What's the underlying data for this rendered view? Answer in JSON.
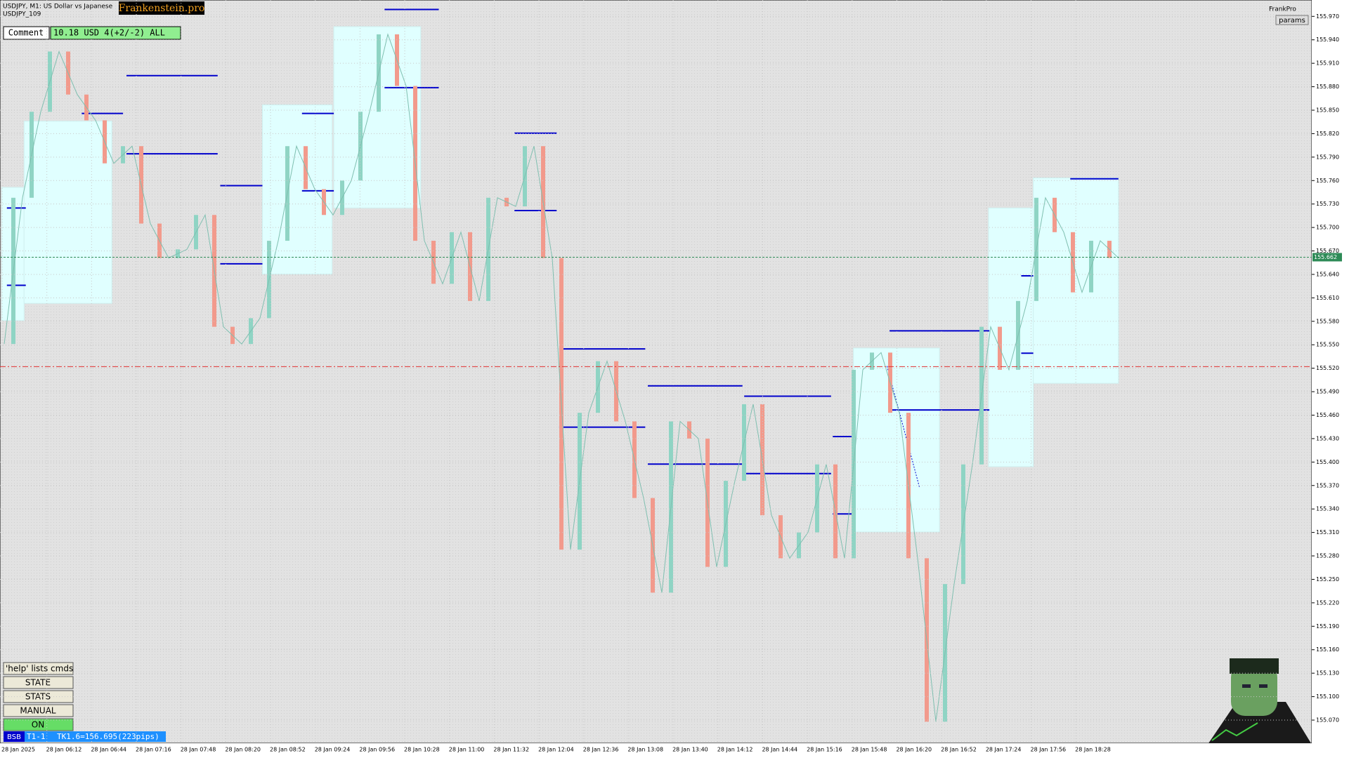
{
  "header": {
    "symbol": "USDJPY, M1:  US Dollar vs Japanese",
    "account": "USDJPY_109",
    "logo": "Frankenstein.pro",
    "brand": "FrankPro",
    "params": "params"
  },
  "comment": {
    "label": "Comment",
    "value": "10.18 USD 4(+2/-2) ALL"
  },
  "buttons": [
    "'help' lists cmds",
    "STATE",
    "STATS",
    "MANUAL",
    "ON"
  ],
  "status": {
    "tag": "BSB",
    "trade": "T1-1",
    "target": "TK1.6=156.695(223pips)"
  },
  "price_axis": {
    "ticks": [
      {
        "value": 155.97,
        "label": "155.970"
      },
      {
        "value": 155.94,
        "label": "155.940"
      },
      {
        "value": 155.91,
        "label": "155.910"
      },
      {
        "value": 155.88,
        "label": "155.880"
      },
      {
        "value": 155.85,
        "label": "155.850"
      },
      {
        "value": 155.82,
        "label": "155.820"
      },
      {
        "value": 155.79,
        "label": "155.790"
      },
      {
        "value": 155.76,
        "label": "155.760"
      },
      {
        "value": 155.73,
        "label": "155.730"
      },
      {
        "value": 155.7,
        "label": "155.700"
      },
      {
        "value": 155.67,
        "label": "155.670"
      },
      {
        "value": 155.64,
        "label": "155.640"
      },
      {
        "value": 155.61,
        "label": "155.610"
      },
      {
        "value": 155.58,
        "label": "155.580"
      },
      {
        "value": 155.55,
        "label": "155.550"
      },
      {
        "value": 155.52,
        "label": "155.520"
      },
      {
        "value": 155.49,
        "label": "155.490"
      },
      {
        "value": 155.46,
        "label": "155.460"
      },
      {
        "value": 155.43,
        "label": "155.430"
      },
      {
        "value": 155.4,
        "label": "155.400"
      },
      {
        "value": 155.37,
        "label": "155.370"
      },
      {
        "value": 155.34,
        "label": "155.340"
      },
      {
        "value": 155.31,
        "label": "155.310"
      },
      {
        "value": 155.28,
        "label": "155.280"
      },
      {
        "value": 155.25,
        "label": "155.250"
      },
      {
        "value": 155.22,
        "label": "155.220"
      },
      {
        "value": 155.19,
        "label": "155.190"
      },
      {
        "value": 155.16,
        "label": "155.160"
      },
      {
        "value": 155.13,
        "label": "155.130"
      },
      {
        "value": 155.1,
        "label": "155.100"
      },
      {
        "value": 155.07,
        "label": "155.070"
      }
    ],
    "current": {
      "value": 155.662,
      "label": "155.662"
    }
  },
  "time_axis": {
    "labels": [
      "28 Jan 2025",
      "28 Jan 06:12",
      "28 Jan 06:44",
      "28 Jan 07:16",
      "28 Jan 07:48",
      "28 Jan 08:20",
      "28 Jan 08:52",
      "28 Jan 09:24",
      "28 Jan 09:56",
      "28 Jan 10:28",
      "28 Jan 11:00",
      "28 Jan 11:32",
      "28 Jan 12:04",
      "28 Jan 12:36",
      "28 Jan 13:08",
      "28 Jan 13:40",
      "28 Jan 14:12",
      "28 Jan 14:44",
      "28 Jan 15:16",
      "28 Jan 15:48",
      "28 Jan 16:20",
      "28 Jan 16:52",
      "28 Jan 17:24",
      "28 Jan 17:56",
      "28 Jan 18:28"
    ]
  },
  "chart": {
    "stop_level": 155.522,
    "prices": [
      155.551,
      155.738,
      155.848,
      155.925,
      155.87,
      155.837,
      155.782,
      155.804,
      155.705,
      155.661,
      155.672,
      155.716,
      155.573,
      155.551,
      155.584,
      155.683,
      155.804,
      155.749,
      155.716,
      155.76,
      155.848,
      155.947,
      155.881,
      155.683,
      155.628,
      155.694,
      155.606,
      155.738,
      155.727,
      155.804,
      155.661,
      155.288,
      155.463,
      155.529,
      155.452,
      155.354,
      155.233,
      155.452,
      155.43,
      155.266,
      155.376,
      155.474,
      155.332,
      155.277,
      155.31,
      155.397,
      155.277,
      155.518,
      155.54,
      155.463,
      155.277,
      155.068,
      155.244,
      155.397,
      155.573,
      155.518,
      155.606,
      155.738,
      155.694,
      155.617,
      155.683,
      155.661
    ]
  }
}
